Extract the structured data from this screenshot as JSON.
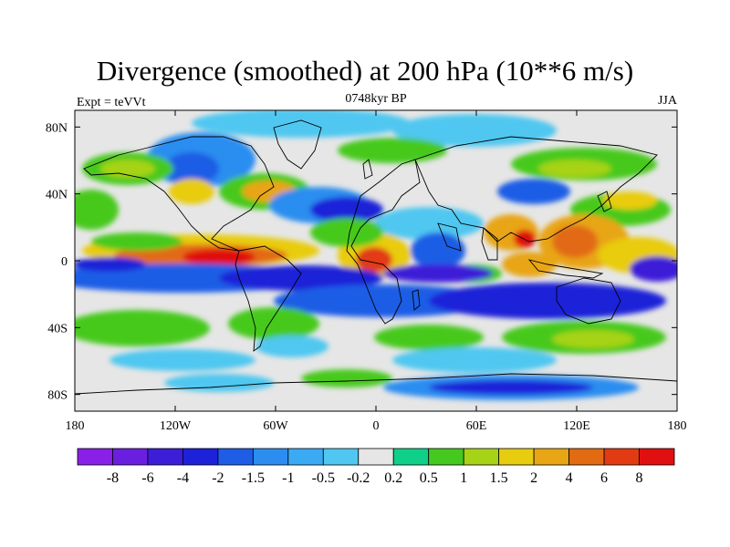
{
  "title": "Divergence (smoothed) at 200 hPa (10**6 m/s)",
  "subtitle_left": "Expt = teVVt",
  "subtitle_center": "0748kyr BP",
  "subtitle_right": "JJA",
  "axes": {
    "x_ticks": [
      "180",
      "120W",
      "60W",
      "0",
      "60E",
      "120E",
      "180"
    ],
    "x_values": [
      -180,
      -120,
      -60,
      0,
      60,
      120,
      180
    ],
    "y_ticks": [
      "80N",
      "40N",
      "0",
      "40S",
      "80S"
    ],
    "y_values": [
      80,
      40,
      0,
      -40,
      -80
    ],
    "lon_range": [
      -180,
      180
    ],
    "lat_range": [
      -90,
      90
    ]
  },
  "colorbar": {
    "labels": [
      "-8",
      "-6",
      "-4",
      "-2",
      "-1.5",
      "-1",
      "-0.5",
      "-0.2",
      "0.2",
      "0.5",
      "1",
      "1.5",
      "2",
      "4",
      "6",
      "8"
    ],
    "colors": [
      "#8a1fe8",
      "#6a1fe0",
      "#3c1ed8",
      "#1d22d8",
      "#1f5de6",
      "#2b8df0",
      "#3aaaf4",
      "#4fc7f0",
      "#e6e6e6",
      "#10d089",
      "#46c91e",
      "#a6d316",
      "#e8cc10",
      "#e8a514",
      "#e26b12",
      "#e23a12",
      "#e01010"
    ]
  },
  "map_colors": {
    "ocean_neutral": "#e6e6e6",
    "coast": "#000000"
  }
}
